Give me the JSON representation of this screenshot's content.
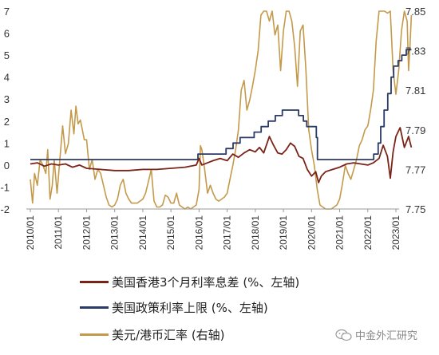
{
  "chart_data": {
    "type": "line",
    "title": "",
    "x_ticks": [
      "2010/01",
      "2011/01",
      "2012/01",
      "2013/01",
      "2014/01",
      "2015/01",
      "2016/01",
      "2017/01",
      "2018/01",
      "2019/01",
      "2020/01",
      "2021/01",
      "2022/01",
      "2023/01"
    ],
    "y_left": {
      "min": -2,
      "max": 7,
      "ticks": [
        "-2",
        "-1",
        "0",
        "1",
        "2",
        "3",
        "4",
        "5",
        "6",
        "7"
      ]
    },
    "y_right": {
      "min": 7.75,
      "max": 7.85,
      "ticks": [
        "7.75",
        "7.77",
        "7.79",
        "7.81",
        "7.83",
        "7.85"
      ]
    },
    "grid": false,
    "legend_position": "bottom",
    "series": [
      {
        "name": "美国香港3个月利率息差 (%、左轴)",
        "axis": "left",
        "color": "#7a2418",
        "points": [
          [
            2010.0,
            0.05
          ],
          [
            2010.25,
            0.1
          ],
          [
            2010.5,
            -0.05
          ],
          [
            2010.75,
            0.05
          ],
          [
            2011.0,
            0.0
          ],
          [
            2011.25,
            0.05
          ],
          [
            2011.5,
            -0.1
          ],
          [
            2011.75,
            0.0
          ],
          [
            2012.0,
            -0.15
          ],
          [
            2012.5,
            -0.2
          ],
          [
            2013.0,
            -0.25
          ],
          [
            2013.5,
            -0.25
          ],
          [
            2014.0,
            -0.2
          ],
          [
            2014.5,
            -0.2
          ],
          [
            2015.0,
            -0.15
          ],
          [
            2015.5,
            -0.1
          ],
          [
            2015.9,
            0.0
          ],
          [
            2016.0,
            0.3
          ],
          [
            2016.1,
            0.0
          ],
          [
            2016.3,
            0.1
          ],
          [
            2016.5,
            0.2
          ],
          [
            2016.75,
            0.3
          ],
          [
            2017.0,
            0.2
          ],
          [
            2017.2,
            0.5
          ],
          [
            2017.4,
            0.35
          ],
          [
            2017.6,
            0.55
          ],
          [
            2017.8,
            0.7
          ],
          [
            2018.0,
            0.6
          ],
          [
            2018.15,
            0.8
          ],
          [
            2018.3,
            0.55
          ],
          [
            2018.5,
            1.3
          ],
          [
            2018.65,
            0.9
          ],
          [
            2018.8,
            0.55
          ],
          [
            2018.95,
            0.5
          ],
          [
            2019.1,
            0.7
          ],
          [
            2019.25,
            1.0
          ],
          [
            2019.4,
            0.85
          ],
          [
            2019.55,
            0.4
          ],
          [
            2019.7,
            0.3
          ],
          [
            2019.85,
            -0.2
          ],
          [
            2020.0,
            -0.5
          ],
          [
            2020.15,
            -0.3
          ],
          [
            2020.25,
            -0.8
          ],
          [
            2020.35,
            -0.5
          ],
          [
            2020.5,
            -0.3
          ],
          [
            2020.75,
            -0.2
          ],
          [
            2021.0,
            -0.1
          ],
          [
            2021.25,
            0.05
          ],
          [
            2021.5,
            0.1
          ],
          [
            2021.75,
            0.05
          ],
          [
            2022.0,
            0.0
          ],
          [
            2022.2,
            0.1
          ],
          [
            2022.4,
            0.3
          ],
          [
            2022.55,
            0.9
          ],
          [
            2022.7,
            0.4
          ],
          [
            2022.8,
            -0.6
          ],
          [
            2022.9,
            0.6
          ],
          [
            2023.0,
            1.3
          ],
          [
            2023.15,
            1.7
          ],
          [
            2023.3,
            0.8
          ],
          [
            2023.45,
            1.3
          ],
          [
            2023.55,
            0.8
          ]
        ]
      },
      {
        "name": "美国政策利率上限 (%、左轴)",
        "axis": "left",
        "color": "#2b3a67",
        "points": [
          [
            2010.0,
            0.25
          ],
          [
            2015.96,
            0.25
          ],
          [
            2015.96,
            0.5
          ],
          [
            2016.96,
            0.5
          ],
          [
            2016.96,
            0.75
          ],
          [
            2017.21,
            0.75
          ],
          [
            2017.21,
            1.0
          ],
          [
            2017.46,
            1.0
          ],
          [
            2017.46,
            1.25
          ],
          [
            2017.96,
            1.25
          ],
          [
            2017.96,
            1.5
          ],
          [
            2018.21,
            1.5
          ],
          [
            2018.21,
            1.75
          ],
          [
            2018.46,
            1.75
          ],
          [
            2018.46,
            2.0
          ],
          [
            2018.71,
            2.0
          ],
          [
            2018.71,
            2.25
          ],
          [
            2018.96,
            2.25
          ],
          [
            2018.96,
            2.5
          ],
          [
            2019.54,
            2.5
          ],
          [
            2019.54,
            2.25
          ],
          [
            2019.71,
            2.25
          ],
          [
            2019.71,
            2.0
          ],
          [
            2019.83,
            2.0
          ],
          [
            2019.83,
            1.75
          ],
          [
            2020.17,
            1.75
          ],
          [
            2020.17,
            1.25
          ],
          [
            2020.21,
            1.25
          ],
          [
            2020.21,
            0.25
          ],
          [
            2022.21,
            0.25
          ],
          [
            2022.21,
            0.5
          ],
          [
            2022.37,
            0.5
          ],
          [
            2022.37,
            1.0
          ],
          [
            2022.46,
            1.0
          ],
          [
            2022.46,
            1.75
          ],
          [
            2022.58,
            1.75
          ],
          [
            2022.58,
            2.5
          ],
          [
            2022.71,
            2.5
          ],
          [
            2022.71,
            3.25
          ],
          [
            2022.83,
            3.25
          ],
          [
            2022.83,
            4.0
          ],
          [
            2022.92,
            4.0
          ],
          [
            2022.92,
            4.5
          ],
          [
            2023.08,
            4.5
          ],
          [
            2023.08,
            4.75
          ],
          [
            2023.21,
            4.75
          ],
          [
            2023.21,
            5.0
          ],
          [
            2023.37,
            5.0
          ],
          [
            2023.37,
            5.25
          ],
          [
            2023.55,
            5.25
          ]
        ]
      },
      {
        "name": "美元/港币汇率 (右轴)",
        "axis": "right",
        "color": "#c49a4a",
        "points": [
          [
            2010.0,
            7.765
          ],
          [
            2010.08,
            7.753
          ],
          [
            2010.15,
            7.768
          ],
          [
            2010.25,
            7.762
          ],
          [
            2010.35,
            7.775
          ],
          [
            2010.45,
            7.772
          ],
          [
            2010.55,
            7.768
          ],
          [
            2010.62,
            7.78
          ],
          [
            2010.7,
            7.755
          ],
          [
            2010.78,
            7.762
          ],
          [
            2010.85,
            7.775
          ],
          [
            2010.95,
            7.758
          ],
          [
            2011.05,
            7.775
          ],
          [
            2011.15,
            7.792
          ],
          [
            2011.25,
            7.778
          ],
          [
            2011.35,
            7.783
          ],
          [
            2011.45,
            7.8
          ],
          [
            2011.55,
            7.788
          ],
          [
            2011.62,
            7.802
          ],
          [
            2011.7,
            7.793
          ],
          [
            2011.78,
            7.795
          ],
          [
            2011.85,
            7.79
          ],
          [
            2011.92,
            7.785
          ],
          [
            2012.0,
            7.785
          ],
          [
            2012.1,
            7.77
          ],
          [
            2012.2,
            7.775
          ],
          [
            2012.3,
            7.765
          ],
          [
            2012.4,
            7.77
          ],
          [
            2012.5,
            7.768
          ],
          [
            2012.6,
            7.762
          ],
          [
            2012.7,
            7.756
          ],
          [
            2012.8,
            7.752
          ],
          [
            2012.9,
            7.751
          ],
          [
            2013.0,
            7.752
          ],
          [
            2013.1,
            7.755
          ],
          [
            2013.2,
            7.762
          ],
          [
            2013.3,
            7.765
          ],
          [
            2013.4,
            7.758
          ],
          [
            2013.5,
            7.755
          ],
          [
            2013.6,
            7.753
          ],
          [
            2013.7,
            7.753
          ],
          [
            2013.8,
            7.753
          ],
          [
            2013.9,
            7.754
          ],
          [
            2014.0,
            7.755
          ],
          [
            2014.1,
            7.758
          ],
          [
            2014.2,
            7.764
          ],
          [
            2014.3,
            7.77
          ],
          [
            2014.4,
            7.754
          ],
          [
            2014.5,
            7.751
          ],
          [
            2014.6,
            7.751
          ],
          [
            2014.7,
            7.752
          ],
          [
            2014.8,
            7.757
          ],
          [
            2014.9,
            7.756
          ],
          [
            2015.0,
            7.753
          ],
          [
            2015.1,
            7.753
          ],
          [
            2015.2,
            7.758
          ],
          [
            2015.3,
            7.752
          ],
          [
            2015.4,
            7.751
          ],
          [
            2015.5,
            7.75
          ],
          [
            2015.6,
            7.751
          ],
          [
            2015.7,
            7.75
          ],
          [
            2015.8,
            7.751
          ],
          [
            2015.9,
            7.752
          ],
          [
            2016.0,
            7.76
          ],
          [
            2016.05,
            7.782
          ],
          [
            2016.1,
            7.78
          ],
          [
            2016.2,
            7.77
          ],
          [
            2016.3,
            7.758
          ],
          [
            2016.4,
            7.762
          ],
          [
            2016.5,
            7.758
          ],
          [
            2016.6,
            7.755
          ],
          [
            2016.7,
            7.754
          ],
          [
            2016.8,
            7.755
          ],
          [
            2016.9,
            7.756
          ],
          [
            2017.0,
            7.758
          ],
          [
            2017.1,
            7.765
          ],
          [
            2017.2,
            7.772
          ],
          [
            2017.3,
            7.78
          ],
          [
            2017.4,
            7.79
          ],
          [
            2017.5,
            7.81
          ],
          [
            2017.6,
            7.815
          ],
          [
            2017.7,
            7.8
          ],
          [
            2017.8,
            7.805
          ],
          [
            2017.9,
            7.812
          ],
          [
            2018.0,
            7.82
          ],
          [
            2018.1,
            7.83
          ],
          [
            2018.2,
            7.848
          ],
          [
            2018.3,
            7.85
          ],
          [
            2018.4,
            7.85
          ],
          [
            2018.5,
            7.845
          ],
          [
            2018.6,
            7.85
          ],
          [
            2018.7,
            7.838
          ],
          [
            2018.8,
            7.843
          ],
          [
            2018.9,
            7.82
          ],
          [
            2019.0,
            7.84
          ],
          [
            2019.1,
            7.85
          ],
          [
            2019.2,
            7.85
          ],
          [
            2019.3,
            7.845
          ],
          [
            2019.4,
            7.832
          ],
          [
            2019.5,
            7.812
          ],
          [
            2019.6,
            7.84
          ],
          [
            2019.7,
            7.843
          ],
          [
            2019.8,
            7.82
          ],
          [
            2019.9,
            7.79
          ],
          [
            2020.0,
            7.78
          ],
          [
            2020.1,
            7.772
          ],
          [
            2020.2,
            7.76
          ],
          [
            2020.3,
            7.752
          ],
          [
            2020.4,
            7.751
          ],
          [
            2020.5,
            7.75
          ],
          [
            2020.6,
            7.75
          ],
          [
            2020.7,
            7.75
          ],
          [
            2020.8,
            7.751
          ],
          [
            2020.9,
            7.752
          ],
          [
            2021.0,
            7.755
          ],
          [
            2021.1,
            7.763
          ],
          [
            2021.2,
            7.772
          ],
          [
            2021.3,
            7.768
          ],
          [
            2021.4,
            7.765
          ],
          [
            2021.5,
            7.77
          ],
          [
            2021.6,
            7.775
          ],
          [
            2021.7,
            7.782
          ],
          [
            2021.8,
            7.785
          ],
          [
            2021.9,
            7.79
          ],
          [
            2022.0,
            7.792
          ],
          [
            2022.1,
            7.8
          ],
          [
            2022.2,
            7.81
          ],
          [
            2022.3,
            7.835
          ],
          [
            2022.4,
            7.85
          ],
          [
            2022.5,
            7.85
          ],
          [
            2022.6,
            7.85
          ],
          [
            2022.7,
            7.849
          ],
          [
            2022.8,
            7.85
          ],
          [
            2022.9,
            7.82
          ],
          [
            2023.0,
            7.808
          ],
          [
            2023.1,
            7.82
          ],
          [
            2023.2,
            7.84
          ],
          [
            2023.3,
            7.85
          ],
          [
            2023.4,
            7.845
          ],
          [
            2023.45,
            7.82
          ],
          [
            2023.5,
            7.832
          ],
          [
            2023.55,
            7.848
          ]
        ]
      }
    ]
  },
  "legend": [
    {
      "label": "美国香港3个月利率息差 (%、左轴)",
      "color": "#7a2418"
    },
    {
      "label": "美国政策利率上限 (%、左轴)",
      "color": "#2b3a67"
    },
    {
      "label": "美元/港币汇率 (右轴)",
      "color": "#c49a4a"
    }
  ],
  "watermark": {
    "text": "中金外汇研究",
    "icon": "wechat-icon"
  }
}
